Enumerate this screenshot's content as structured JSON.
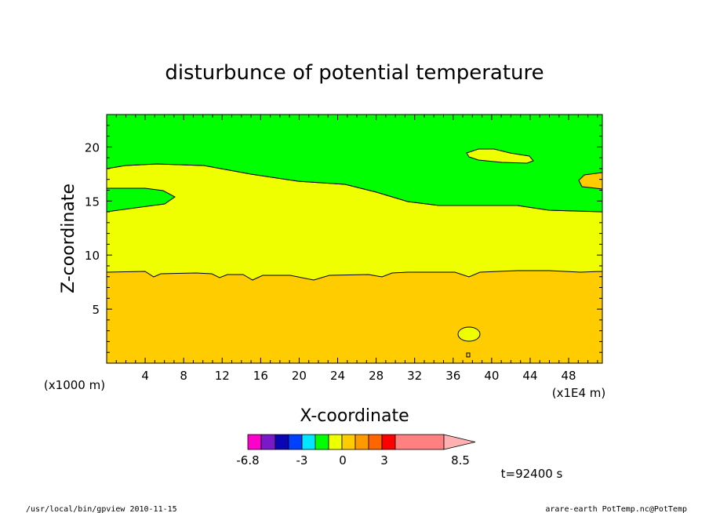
{
  "chart_data": {
    "type": "contour",
    "title": "disturbunce of potential temperature",
    "xlabel": "X-coordinate",
    "ylabel": "Z-coordinate",
    "x_unit_label": "(x1000 m)",
    "x_scale_label": "(x1E4 m)",
    "xlim": [
      0,
      51.5
    ],
    "ylim": [
      0,
      23
    ],
    "x_ticks": [
      4,
      8,
      12,
      16,
      20,
      24,
      28,
      32,
      36,
      40,
      44,
      48
    ],
    "y_ticks": [
      5,
      10,
      15,
      20
    ],
    "regions": [
      {
        "level": "green",
        "color": "#00ff00",
        "z_range": [
          16,
          23
        ]
      },
      {
        "level": "yellow",
        "color": "#f0ff00",
        "z_range": [
          8.3,
          16
        ]
      },
      {
        "level": "orange",
        "color": "#ffcc00",
        "z_range": [
          0,
          8.3
        ]
      }
    ],
    "colorbar": {
      "colors": [
        "#ff00cc",
        "#7a19c8",
        "#0a06b4",
        "#0040ff",
        "#00e6ff",
        "#00ff00",
        "#f0ff00",
        "#ffcc00",
        "#ff9900",
        "#ff6600",
        "#ff0000",
        "#ff8080",
        "#ffb0b0"
      ],
      "labels": [
        "-6.8",
        "-3",
        "0",
        "3",
        "8.5"
      ]
    },
    "time_label": "t=92400 s"
  },
  "footer": {
    "left": "/usr/local/bin/gpview   2010-11-15",
    "right": "arare-earth_PotTemp.nc@PotTemp"
  }
}
